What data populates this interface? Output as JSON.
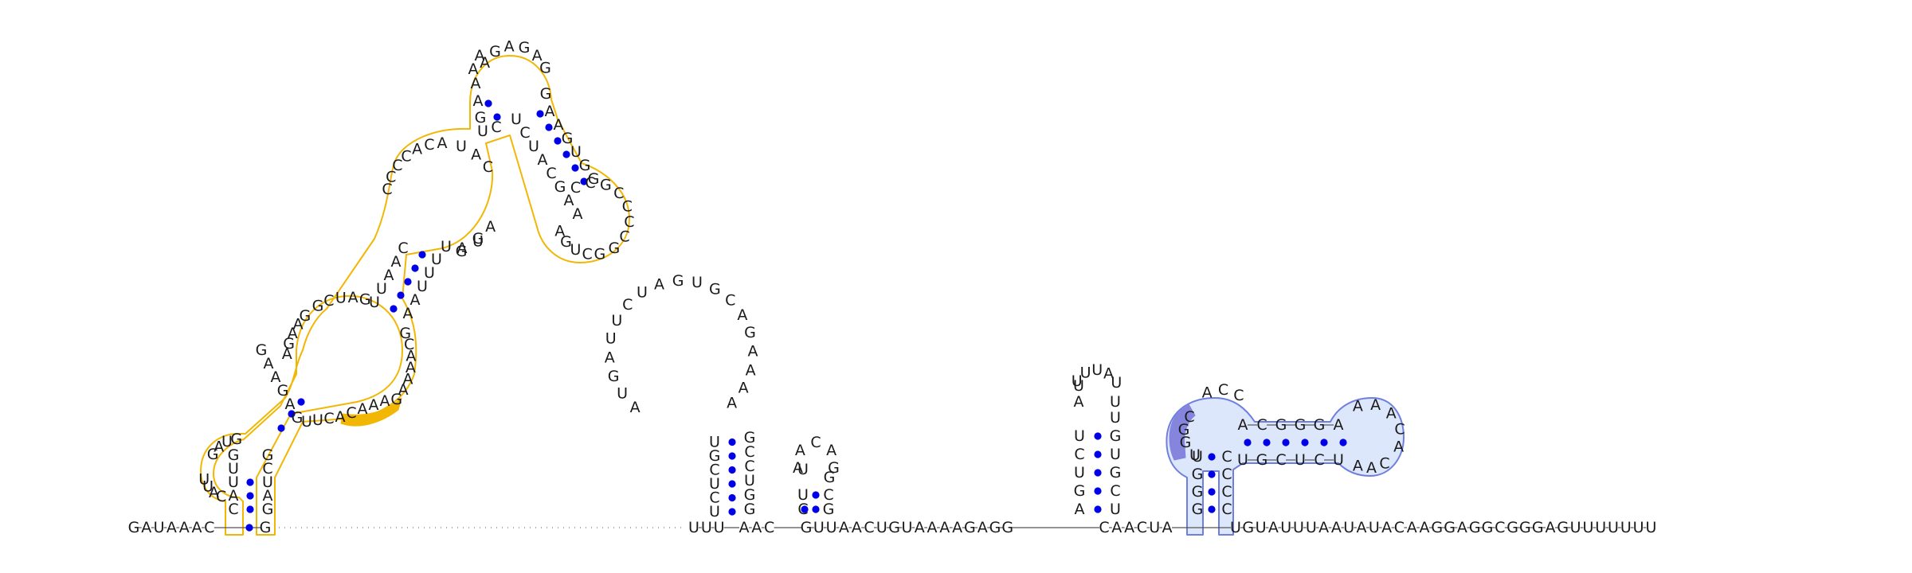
{
  "colors": {
    "pair_dot": "#0000e8",
    "backbone": "#555555",
    "gap_dots": "#888888",
    "region_yellow_stroke": "#f2b705",
    "region_yellow_fill": "#ffffff",
    "region_yellow_highlight": "#f2b705",
    "region_blue_stroke": "#6f7fe0",
    "region_blue_fill": "#dde7fb",
    "region_blue_highlight": "#8585dd"
  },
  "strand": {
    "five_prime": "GAUAAAC",
    "junction_a": "UUU",
    "junction_b": "AAC",
    "junction_c": "GUUAACUGUAAAAGAGG",
    "junction_d": "CAACUA",
    "three_prime": "UGUAUUUAAUAUACAAGGAGGCGGGAGUUUUUUU"
  },
  "helices": {
    "helix1": {
      "left_col": "CGUGAGUAACGCAAAUGCUCA",
      "right_col": "GCAGAUGUCUAGAAUCGGUCGUGGCC",
      "loop1": "GAUG",
      "loop2": "GACCCA",
      "loop3": "AGUAG",
      "top_loop": "AGAGAG",
      "side_loop": "CCGCCCGGCUGA"
    },
    "hairpin2": {
      "stem_left": "UCUCGU",
      "stem_right": "GCUAGG",
      "loop": "AAAAGACGUGAUCUUAGUA"
    },
    "hairpin3": {
      "stem_left": "CU",
      "stem_right": "GC",
      "loop": "AACAG"
    },
    "hairpin4": {
      "stem_left": "AGUCU",
      "stem_right": "UCGUGU",
      "loop": "UUUAU"
    },
    "hairpin5": {
      "outer_left": "GGGU",
      "outer_right": "CCCC",
      "inner_top": "ACGGGA",
      "inner_bottom": "UGCUCU",
      "loop_left": "UGGC",
      "loop_top": "ACC",
      "loop_right": "AAACA",
      "loop_bottom": "CAA"
    }
  }
}
